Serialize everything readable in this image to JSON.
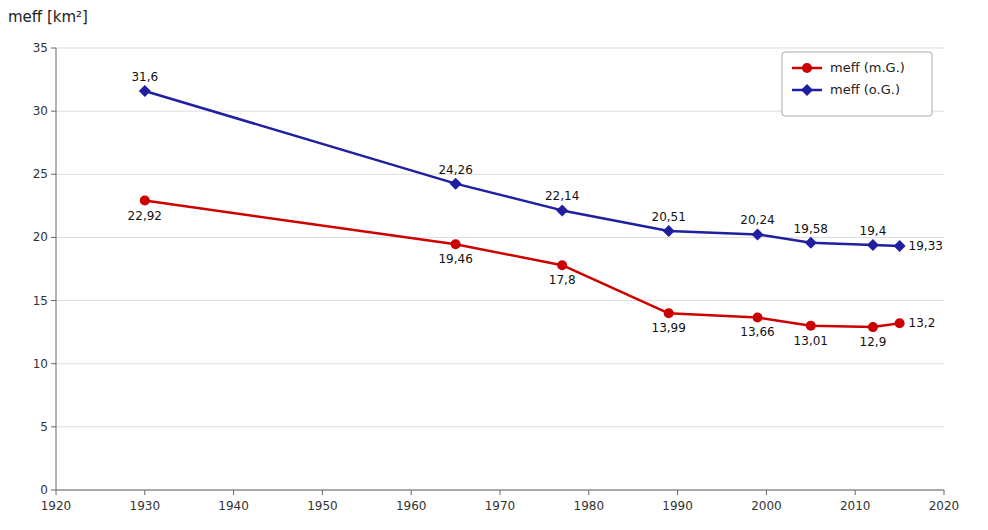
{
  "chart_data": {
    "type": "line",
    "ylabel": "meff [km²]",
    "x": [
      1930,
      1965,
      1977,
      1989,
      1999,
      2005,
      2012,
      2015
    ],
    "series": [
      {
        "name": "meff (m.G.)",
        "color": "#CC0000",
        "marker": "circle",
        "values": [
          22.92,
          19.46,
          17.8,
          13.99,
          13.66,
          13.01,
          12.9,
          13.2
        ],
        "value_labels": [
          "22,92",
          "19,46",
          "17,8",
          "13,99",
          "13,66",
          "13,01",
          "12,9",
          "13,2"
        ]
      },
      {
        "name": "meff (o.G.)",
        "color": "#1F1F9F",
        "marker": "diamond",
        "values": [
          31.6,
          24.26,
          22.14,
          20.51,
          20.24,
          19.58,
          19.4,
          19.33
        ],
        "value_labels": [
          "31,6",
          "24,26",
          "22,14",
          "20,51",
          "20,24",
          "19,58",
          "19,4",
          "19,33"
        ]
      }
    ],
    "xlim": [
      1920,
      2020
    ],
    "ylim": [
      0,
      35
    ],
    "xticks": [
      1920,
      1930,
      1940,
      1950,
      1960,
      1970,
      1980,
      1990,
      2000,
      2010,
      2020
    ],
    "yticks": [
      0,
      5,
      10,
      15,
      20,
      25,
      30,
      35
    ],
    "grid": true,
    "legend": "upper-right",
    "data_labels": true
  }
}
